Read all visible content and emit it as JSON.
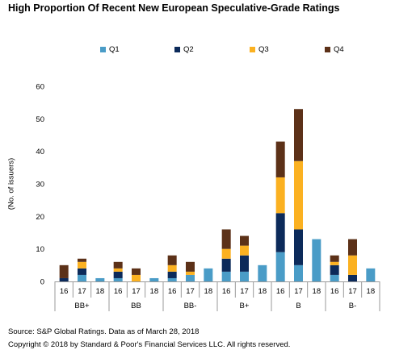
{
  "chart_title": "High Proportion Of Recent New European Speculative-Grade Ratings",
  "source": "Source: S&P Global Ratings. Data as of March 28, 2018",
  "copyright": "Copyright © 2018 by Standard & Poor's Financial Services LLC. All rights reserved.",
  "chart_data": {
    "type": "bar",
    "stacked": true,
    "title": "High Proportion Of Recent New European Speculative-Grade Ratings",
    "ylabel": "(No. of issuers)",
    "xlabel": "",
    "ylim": [
      0,
      60
    ],
    "yticks": [
      0,
      10,
      20,
      30,
      40,
      50,
      60
    ],
    "grid": false,
    "legend_position": "top",
    "groups": [
      {
        "label": "BB+",
        "years": [
          "16",
          "17",
          "18"
        ]
      },
      {
        "label": "BB",
        "years": [
          "16",
          "17",
          "18"
        ]
      },
      {
        "label": "BB-",
        "years": [
          "16",
          "17",
          "18"
        ]
      },
      {
        "label": "B+",
        "years": [
          "16",
          "17",
          "18"
        ]
      },
      {
        "label": "B",
        "years": [
          "16",
          "17",
          "18"
        ]
      },
      {
        "label": "B-",
        "years": [
          "16",
          "17",
          "18"
        ]
      }
    ],
    "categories": [
      "BB+ 16",
      "BB+ 17",
      "BB+ 18",
      "BB 16",
      "BB 17",
      "BB 18",
      "BB- 16",
      "BB- 17",
      "BB- 18",
      "B+ 16",
      "B+ 17",
      "B+ 18",
      "B 16",
      "B 17",
      "B 18",
      "B- 16",
      "B- 17",
      "B- 18"
    ],
    "series": [
      {
        "name": "Q1",
        "color": "#4a9cc7",
        "values": [
          0,
          2,
          1,
          1,
          0,
          1,
          1,
          2,
          4,
          3,
          3,
          5,
          9,
          5,
          13,
          2,
          0,
          4
        ]
      },
      {
        "name": "Q2",
        "color": "#0c2a5a",
        "values": [
          1,
          2,
          0,
          2,
          0,
          0,
          2,
          0,
          0,
          4,
          5,
          0,
          12,
          11,
          0,
          3,
          2,
          0
        ]
      },
      {
        "name": "Q3",
        "color": "#fbb121",
        "values": [
          0,
          2,
          0,
          1,
          2,
          0,
          2,
          1,
          0,
          3,
          3,
          0,
          11,
          21,
          0,
          1,
          6,
          0
        ]
      },
      {
        "name": "Q4",
        "color": "#5c3118",
        "values": [
          4,
          1,
          0,
          2,
          2,
          0,
          3,
          3,
          0,
          6,
          3,
          0,
          11,
          16,
          0,
          2,
          5,
          0
        ]
      }
    ]
  }
}
